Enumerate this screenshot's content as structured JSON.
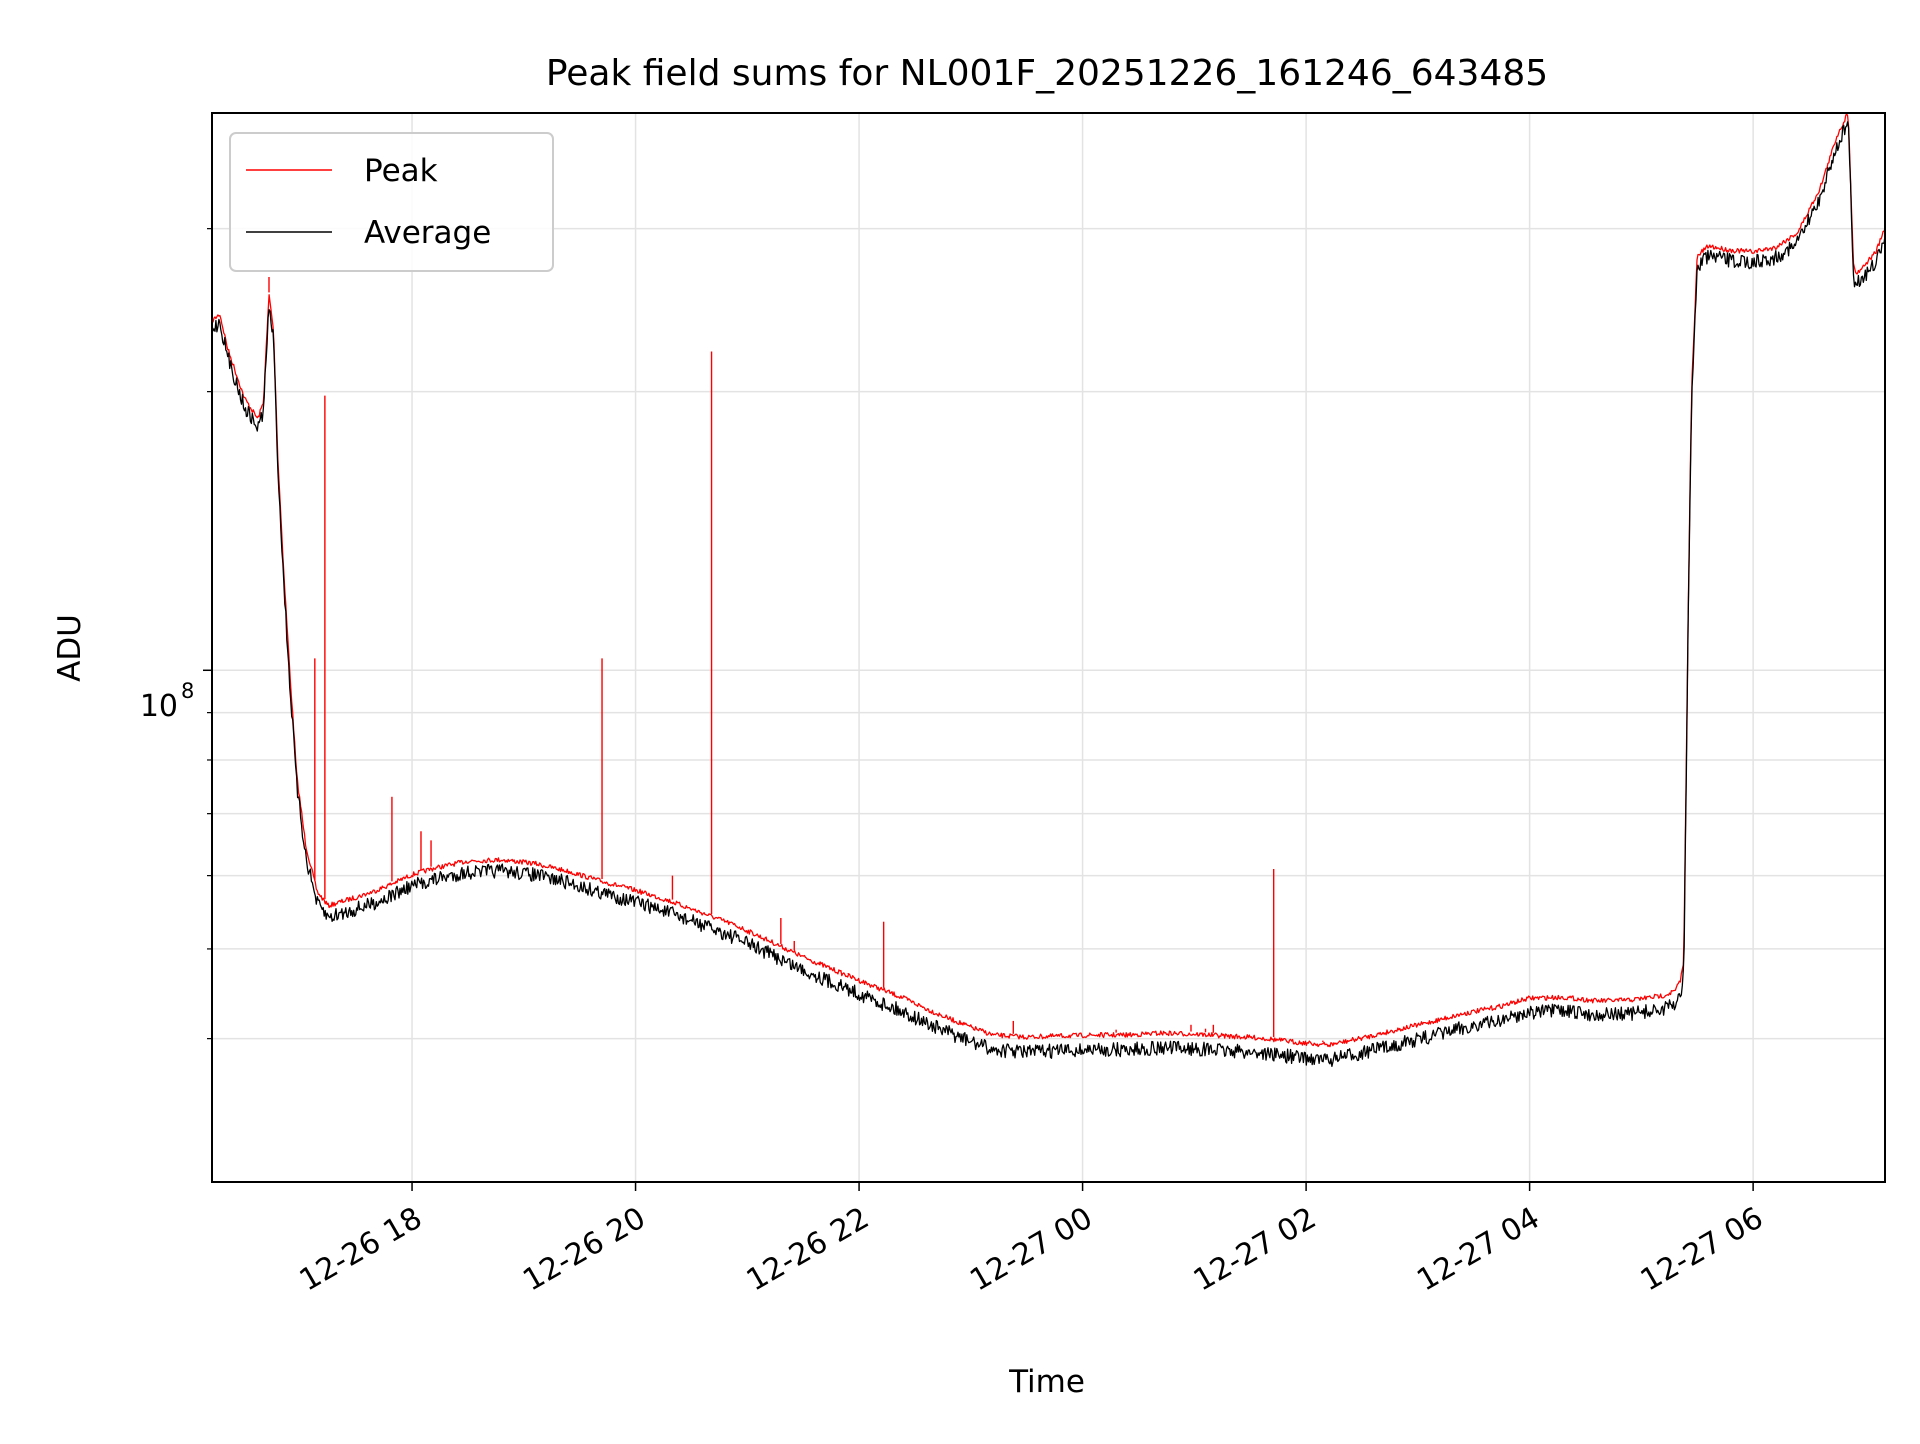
{
  "chart_data": {
    "type": "line",
    "title": "Peak field sums for NL001F_20251226_161246_643485",
    "xlabel": "Time",
    "ylabel": "ADU",
    "yscale": "log",
    "xlim_hours": [
      16.21,
      31.18
    ],
    "ylim": [
      28000000,
      400000000
    ],
    "grid": true,
    "legend_position": "upper-left",
    "x_ticks": [
      {
        "hour": 18,
        "label": "12-26 18"
      },
      {
        "hour": 20,
        "label": "12-26 20"
      },
      {
        "hour": 22,
        "label": "12-26 22"
      },
      {
        "hour": 24,
        "label": "12-27 00"
      },
      {
        "hour": 26,
        "label": "12-27 02"
      },
      {
        "hour": 28,
        "label": "12-27 04"
      },
      {
        "hour": 30,
        "label": "12-27 06"
      }
    ],
    "y_major_tick": {
      "value": 100000000,
      "label_base": "10",
      "label_exp": "8"
    },
    "y_minor_ticks": [
      40000000,
      50000000,
      60000000,
      70000000,
      80000000,
      90000000,
      200000000,
      300000000
    ],
    "series": [
      {
        "name": "Average",
        "color": "#000000",
        "x": [
          16.21,
          16.28,
          16.35,
          16.5,
          16.62,
          16.67,
          16.72,
          16.76,
          16.8,
          16.85,
          16.9,
          16.97,
          17.05,
          17.15,
          17.25,
          17.35,
          17.5,
          17.65,
          17.8,
          18.0,
          18.2,
          18.5,
          18.8,
          19.1,
          19.4,
          19.7,
          20.0,
          20.3,
          20.6,
          20.9,
          21.2,
          21.5,
          21.8,
          22.1,
          22.4,
          22.7,
          23.0,
          23.2,
          23.5,
          23.8,
          24.1,
          24.4,
          24.7,
          25.0,
          25.3,
          25.6,
          25.9,
          26.2,
          26.5,
          26.8,
          27.1,
          27.4,
          27.7,
          28.0,
          28.3,
          28.6,
          28.9,
          29.2,
          29.3,
          29.35,
          29.38,
          29.42,
          29.45,
          29.5,
          29.6,
          29.8,
          30.0,
          30.2,
          30.4,
          30.6,
          30.75,
          30.85,
          30.9,
          30.92,
          30.95,
          31.0,
          31.1,
          31.18
        ],
        "values": [
          238000000,
          242000000,
          222000000,
          196000000,
          186000000,
          194000000,
          252000000,
          232000000,
          168000000,
          128000000,
          101000000,
          76000000,
          64000000,
          57000000,
          55000000,
          55500000,
          56200000,
          57000000,
          58000000,
          59500000,
          60500000,
          61600000,
          61800000,
          61200000,
          60000000,
          58500000,
          57200000,
          55700000,
          54000000,
          52300000,
          50300000,
          48300000,
          46600000,
          45000000,
          43500000,
          41800000,
          40400000,
          39600000,
          39400000,
          39500000,
          39600000,
          39600000,
          39800000,
          39700000,
          39500000,
          39300000,
          38900000,
          38600000,
          39300000,
          40100000,
          40900000,
          41800000,
          42500000,
          43500000,
          43600000,
          43200000,
          43300000,
          43800000,
          44300000,
          45500000,
          48000000,
          118000000,
          200000000,
          278000000,
          285000000,
          282000000,
          281000000,
          284000000,
          295000000,
          330000000,
          375000000,
          398000000,
          270000000,
          266000000,
          268000000,
          272000000,
          281000000,
          298000000
        ]
      },
      {
        "name": "Peak",
        "color": "#ff0000",
        "x": [
          16.21,
          16.28,
          16.35,
          16.5,
          16.62,
          16.67,
          16.72,
          16.76,
          16.8,
          16.85,
          16.9,
          16.97,
          17.05,
          17.15,
          17.25,
          17.35,
          17.5,
          17.65,
          17.8,
          18.0,
          18.2,
          18.5,
          18.8,
          19.1,
          19.4,
          19.7,
          20.0,
          20.3,
          20.6,
          20.9,
          21.2,
          21.5,
          21.8,
          22.1,
          22.4,
          22.7,
          23.0,
          23.2,
          23.5,
          23.8,
          24.1,
          24.4,
          24.7,
          25.0,
          25.3,
          25.6,
          25.9,
          26.2,
          26.5,
          26.8,
          27.1,
          27.4,
          27.7,
          28.0,
          28.3,
          28.6,
          28.9,
          29.2,
          29.3,
          29.35,
          29.38,
          29.42,
          29.45,
          29.5,
          29.6,
          29.8,
          30.0,
          30.2,
          30.4,
          30.6,
          30.75,
          30.85,
          30.9,
          30.92,
          30.95,
          31.0,
          31.1,
          31.18
        ],
        "values": [
          240000000,
          244000000,
          224000000,
          198000000,
          188000000,
          196000000,
          256000000,
          235000000,
          170000000,
          130000000,
          103000000,
          77000000,
          65000000,
          58000000,
          56000000,
          56500000,
          57200000,
          58000000,
          59000000,
          60500000,
          61500000,
          62600000,
          62800000,
          62200000,
          61000000,
          59500000,
          58200000,
          56700000,
          55000000,
          53300000,
          51300000,
          49300000,
          47600000,
          46000000,
          44500000,
          42800000,
          41400000,
          40600000,
          40400000,
          40500000,
          40600000,
          40600000,
          40800000,
          40700000,
          40500000,
          40300000,
          39900000,
          39600000,
          40300000,
          41100000,
          41900000,
          42800000,
          43500000,
          44500000,
          44600000,
          44200000,
          44300000,
          44800000,
          45300000,
          46500000,
          49000000,
          120000000,
          203000000,
          282000000,
          289000000,
          286000000,
          285000000,
          288000000,
          299000000,
          334000000,
          380000000,
          403000000,
          274000000,
          270000000,
          272000000,
          276000000,
          285000000,
          302000000
        ],
        "spikes": [
          {
            "x": 16.72,
            "value": 266000000
          },
          {
            "x": 17.13,
            "value": 103000000
          },
          {
            "x": 17.22,
            "value": 198000000
          },
          {
            "x": 17.82,
            "value": 73000000
          },
          {
            "x": 18.08,
            "value": 67000000
          },
          {
            "x": 18.17,
            "value": 65500000
          },
          {
            "x": 19.7,
            "value": 103000000
          },
          {
            "x": 20.33,
            "value": 60000000
          },
          {
            "x": 20.68,
            "value": 221000000
          },
          {
            "x": 21.3,
            "value": 54000000
          },
          {
            "x": 21.42,
            "value": 51000000
          },
          {
            "x": 21.65,
            "value": 48000000
          },
          {
            "x": 21.9,
            "value": 47000000
          },
          {
            "x": 22.22,
            "value": 53500000
          },
          {
            "x": 23.38,
            "value": 41800000
          },
          {
            "x": 24.3,
            "value": 40900000
          },
          {
            "x": 24.97,
            "value": 41400000
          },
          {
            "x": 25.1,
            "value": 41000000
          },
          {
            "x": 25.17,
            "value": 41400000
          },
          {
            "x": 25.71,
            "value": 61000000
          },
          {
            "x": 26.15,
            "value": 39800000
          }
        ]
      }
    ]
  }
}
